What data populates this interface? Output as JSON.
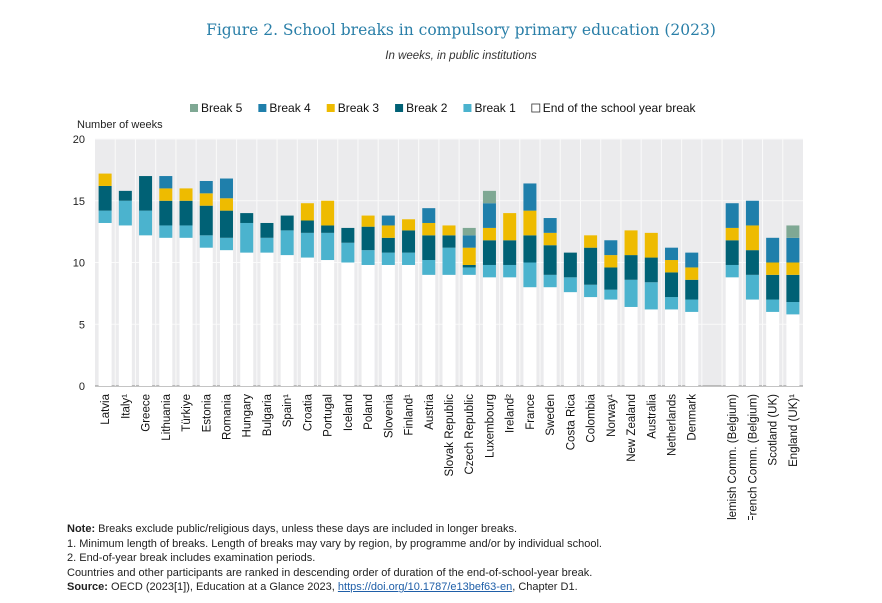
{
  "chart_data": {
    "type": "bar",
    "stacked": true,
    "title": "Figure 2. School breaks in compulsory primary education (2023)",
    "subtitle": "In weeks, in public institutions",
    "ylabel": "Number of weeks",
    "ylim": [
      0,
      20
    ],
    "yticks": [
      0,
      5,
      10,
      15,
      20
    ],
    "grid": true,
    "legend_position": "top",
    "categories": [
      "Latvia",
      "Italy¹",
      "Greece",
      "Lithuania",
      "Türkiye",
      "Estonia",
      "Romania",
      "Hungary",
      "Bulgaria",
      "Spain¹",
      "Croatia",
      "Portugal",
      "Iceland",
      "Poland",
      "Slovenia",
      "Finland¹",
      "Austria",
      "Slovak Republic",
      "Czech Republic",
      "Luxembourg",
      "Ireland²",
      "France",
      "Sweden",
      "Costa Rica",
      "Colombia",
      "Norway¹",
      "New Zealand",
      "Australia",
      "Netherlands",
      "Denmark",
      "Flemish Comm. (Belgium)",
      "French Comm. (Belgium)",
      "Scotland (UK)",
      "England (UK)¹"
    ],
    "series": [
      {
        "name": "End of the school year break",
        "color": "#ffffff",
        "values": [
          13.2,
          13,
          12.2,
          12,
          12,
          11.2,
          11,
          10.8,
          10.8,
          10.6,
          10.4,
          10.2,
          10,
          9.8,
          9.8,
          9.8,
          9,
          9,
          9,
          8.8,
          8.8,
          8,
          8,
          7.6,
          7.2,
          7,
          6.4,
          6.2,
          6.2,
          6,
          8.8,
          7,
          6,
          5.8
        ]
      },
      {
        "name": "Break 1",
        "color": "#4bb3ce",
        "values": [
          1,
          2,
          2,
          1,
          1,
          1,
          1,
          2.4,
          1.2,
          2,
          2,
          2.2,
          1.6,
          1.2,
          1,
          1,
          1.2,
          2.2,
          0.6,
          1,
          1,
          2,
          1,
          1.2,
          1,
          0.8,
          2.2,
          2.2,
          1,
          1,
          1,
          2,
          1,
          1
        ]
      },
      {
        "name": "Break 2",
        "color": "#006175",
        "values": [
          2,
          0.8,
          2.8,
          2,
          2,
          2.4,
          2.2,
          0.8,
          1.2,
          1.2,
          1,
          0.6,
          1.2,
          1.9,
          1.2,
          1.8,
          2,
          1,
          0.2,
          2,
          2,
          2.2,
          2.4,
          2,
          3,
          1.8,
          2,
          2,
          2,
          1.6,
          2,
          2,
          2,
          2.2
        ]
      },
      {
        "name": "Break 3",
        "color": "#eebb00",
        "values": [
          1,
          0,
          0,
          1,
          1,
          1,
          1,
          0,
          0,
          0,
          1.4,
          2,
          0,
          0.9,
          1,
          0.9,
          1,
          0.8,
          1.4,
          1,
          2.2,
          2,
          1,
          0,
          1,
          1,
          2,
          2,
          1,
          1,
          1,
          2,
          1,
          1
        ]
      },
      {
        "name": "Break 4",
        "color": "#1f7fab",
        "values": [
          0,
          0,
          0,
          1,
          0,
          1,
          1.6,
          0,
          0,
          0,
          0,
          0,
          0,
          0,
          0.8,
          0,
          1.2,
          0,
          1,
          2,
          0,
          2.2,
          1.2,
          0,
          0,
          1.2,
          0,
          0,
          1,
          1.2,
          2,
          2,
          2,
          2
        ]
      },
      {
        "name": "Break 5",
        "color": "#7fa894",
        "values": [
          0,
          0,
          0,
          0,
          0,
          0,
          0,
          0,
          0,
          0,
          0,
          0,
          0,
          0,
          0,
          0,
          0,
          0,
          0.6,
          1,
          0,
          0,
          0,
          0,
          0,
          0,
          0,
          0,
          0,
          0,
          0,
          0,
          0,
          1
        ]
      }
    ],
    "legend_order": [
      "Break 5",
      "Break 4",
      "Break 3",
      "Break 2",
      "Break 1",
      "End of the school year break"
    ],
    "gap_before": "Flemish Comm. (Belgium)"
  },
  "notes": {
    "note_label": "Note:",
    "note_text": " Breaks exclude public/religious days, unless these days are included in longer breaks.",
    "line1": "1. Minimum length of breaks. Length of breaks may vary by region, by programme and/or by individual school.",
    "line2": "2. End-of-year break includes examination periods.",
    "line3": "Countries and other participants are ranked in descending order of duration of the end-of-school-year break.",
    "source_label": "Source:",
    "source_text": " OECD (2023[1]), Education at a Glance 2023, ",
    "source_link": "https://doi.org/10.1787/e13bef63-en",
    "source_tail": ", Chapter D1."
  }
}
